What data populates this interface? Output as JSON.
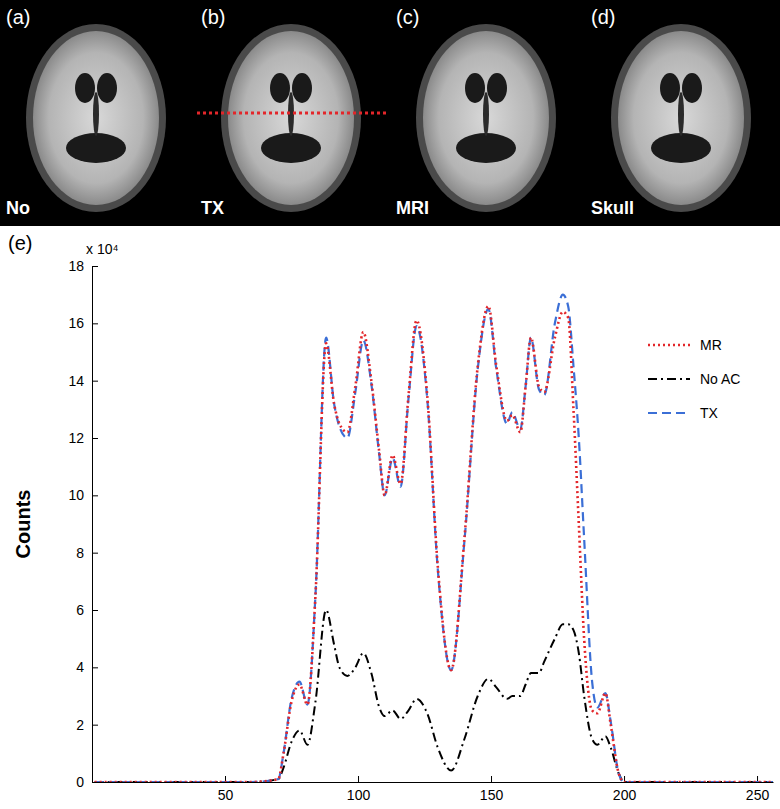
{
  "chart_data": {
    "type": "line",
    "panels": [
      {
        "tag": "(a)",
        "label": "No"
      },
      {
        "tag": "(b)",
        "label": "TX"
      },
      {
        "tag": "(c)",
        "label": "MRI"
      },
      {
        "tag": "(d)",
        "label": "Skull"
      }
    ],
    "panel_label": "(e)",
    "y_label": "Counts",
    "y_multiplier": "x 10⁴",
    "xlim": [
      0,
      256
    ],
    "xticks": [
      50,
      100,
      150,
      200,
      250
    ],
    "ylim": [
      0,
      18
    ],
    "yticks": [
      0,
      2,
      4,
      6,
      8,
      10,
      12,
      14,
      16,
      18
    ],
    "legend": "upper right",
    "x": [
      1,
      60,
      70,
      72,
      75,
      78,
      81,
      84,
      88,
      91,
      93,
      96,
      99,
      102,
      105,
      108,
      110,
      113,
      116,
      119,
      122,
      126,
      130,
      135,
      140,
      145,
      149,
      152,
      156,
      158,
      161,
      163,
      165,
      168,
      170,
      174,
      177,
      179,
      181,
      183,
      185,
      188,
      190,
      193,
      195,
      198,
      200,
      210,
      256
    ],
    "series": [
      {
        "name": "MR",
        "color": "#e3262a",
        "line_style": "dotted",
        "values": [
          0,
          0,
          0.1,
          1.0,
          2.8,
          3.4,
          2.7,
          6.5,
          15.3,
          13.2,
          12.5,
          12.2,
          13.8,
          15.7,
          14.0,
          11.5,
          10.0,
          11.4,
          10.4,
          13.5,
          16.1,
          13.5,
          7.5,
          3.9,
          8.5,
          14.5,
          16.6,
          14.5,
          12.6,
          12.8,
          12.2,
          13.8,
          15.5,
          13.8,
          13.6,
          15.5,
          16.4,
          16.2,
          13.0,
          9.0,
          5.0,
          2.5,
          2.4,
          3.1,
          2.0,
          0.3,
          0,
          0,
          0
        ]
      },
      {
        "name": "No AC",
        "color": "#000000",
        "line_style": "dashdot",
        "values": [
          0,
          0,
          0.1,
          0.5,
          1.4,
          1.8,
          1.3,
          2.8,
          6.0,
          4.8,
          4.0,
          3.7,
          4.0,
          4.5,
          3.8,
          2.6,
          2.3,
          2.5,
          2.2,
          2.5,
          2.9,
          2.4,
          1.2,
          0.4,
          1.5,
          3.0,
          3.6,
          3.3,
          2.9,
          3.0,
          3.0,
          3.4,
          3.8,
          3.8,
          4.2,
          5.0,
          5.5,
          5.5,
          5.3,
          4.5,
          3.0,
          1.5,
          1.3,
          1.6,
          1.2,
          0.3,
          0,
          0,
          0
        ]
      },
      {
        "name": "TX",
        "color": "#3b6fd6",
        "line_style": "dashed",
        "values": [
          0,
          0,
          0.1,
          1.0,
          2.9,
          3.5,
          2.7,
          6.5,
          15.5,
          13.2,
          12.4,
          12.0,
          13.6,
          15.4,
          13.9,
          11.4,
          10.0,
          11.3,
          10.3,
          13.4,
          15.9,
          13.4,
          7.4,
          3.9,
          8.4,
          14.4,
          16.5,
          14.4,
          12.5,
          12.9,
          12.3,
          13.8,
          15.5,
          13.7,
          13.5,
          16.0,
          17.0,
          16.6,
          14.5,
          12.0,
          8.5,
          3.5,
          2.6,
          3.1,
          2.1,
          0.3,
          0,
          0,
          0
        ]
      }
    ]
  }
}
